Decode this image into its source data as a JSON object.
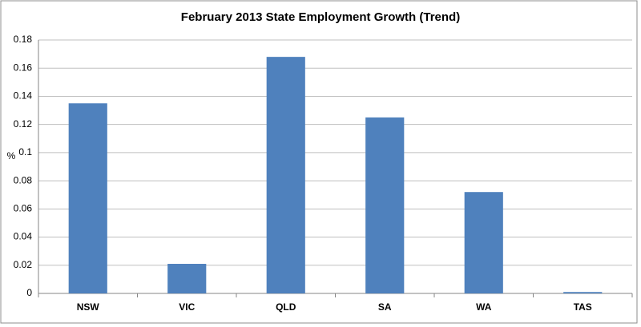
{
  "chart_data": {
    "type": "bar",
    "title": "February 2013 State Employment Growth (Trend)",
    "y_label": "%",
    "categories": [
      "NSW",
      "VIC",
      "QLD",
      "SA",
      "WA",
      "TAS"
    ],
    "values": [
      0.135,
      0.021,
      0.168,
      0.125,
      0.072,
      0.001
    ],
    "color": "#4f81bd",
    "ylim": [
      0,
      0.18
    ],
    "yticks": [
      0,
      0.02,
      0.04,
      0.06,
      0.08,
      0.1,
      0.12,
      0.14,
      0.16,
      0.18
    ],
    "grid": true
  }
}
